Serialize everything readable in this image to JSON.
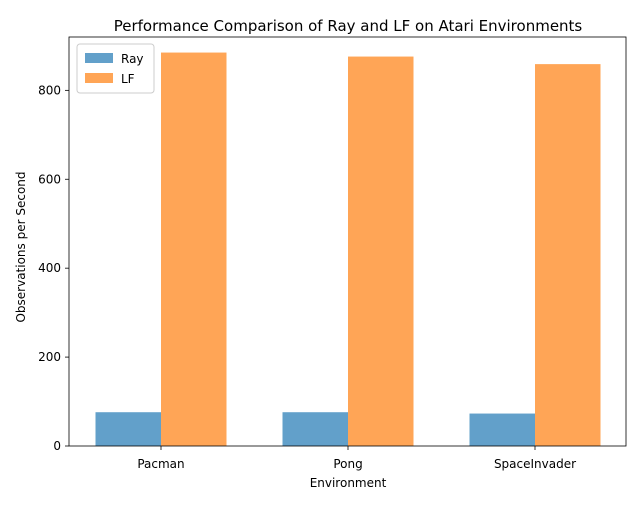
{
  "chart_data": {
    "type": "bar",
    "title": "Performance Comparison of Ray and LF on Atari Environments",
    "xlabel": "Environment",
    "ylabel": "Observations per Second",
    "categories": [
      "Pacman",
      "Pong",
      "SpaceInvader"
    ],
    "series": [
      {
        "name": "Ray",
        "values": [
          76,
          76,
          73
        ],
        "color": "#1f77b4"
      },
      {
        "name": "LF",
        "values": [
          885,
          876,
          859
        ],
        "color": "#ff7f0e"
      }
    ],
    "ylim": [
      0,
      920
    ],
    "yticks": [
      0,
      200,
      400,
      600,
      800
    ],
    "grid": false,
    "legend": "top-left",
    "bar_alpha": 0.7
  }
}
